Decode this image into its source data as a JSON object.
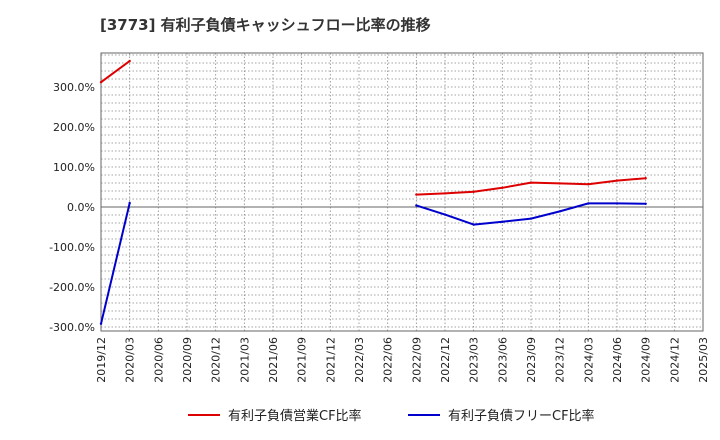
{
  "chart_data": {
    "type": "line",
    "title": "[3773]  有利子負債キャッシュフロー比率の推移",
    "xlabel": "",
    "ylabel": "",
    "ylim": [
      -310,
      385
    ],
    "yticks": [
      300,
      200,
      100,
      0,
      -100,
      -200,
      -300
    ],
    "ytick_labels": [
      "300.0%",
      "200.0%",
      "100.0%",
      "0.0%",
      "-100.0%",
      "-200.0%",
      "-300.0%"
    ],
    "x_labels": [
      "2019/12",
      "2020/03",
      "2020/06",
      "2020/09",
      "2020/12",
      "2021/03",
      "2021/06",
      "2021/09",
      "2021/12",
      "2022/03",
      "2022/06",
      "2022/09",
      "2022/12",
      "2023/03",
      "2023/06",
      "2023/09",
      "2023/12",
      "2024/03",
      "2024/06",
      "2024/09",
      "2024/12",
      "2025/03"
    ],
    "grid": true,
    "legend_position": "bottom",
    "series": [
      {
        "name": "有利子負債営業CF比率",
        "color": "#dd0000",
        "points": [
          {
            "x": "2019/12",
            "y": 312
          },
          {
            "x": "2020/03",
            "y": 365
          },
          {
            "x": "2022/09",
            "y": 31
          },
          {
            "x": "2022/12",
            "y": 34
          },
          {
            "x": "2023/03",
            "y": 38
          },
          {
            "x": "2023/06",
            "y": 48
          },
          {
            "x": "2023/09",
            "y": 61
          },
          {
            "x": "2023/12",
            "y": 59
          },
          {
            "x": "2024/03",
            "y": 57
          },
          {
            "x": "2024/06",
            "y": 66
          },
          {
            "x": "2024/09",
            "y": 72
          }
        ]
      },
      {
        "name": "有利子負債フリーCF比率",
        "color": "#0000cc",
        "points": [
          {
            "x": "2019/12",
            "y": -292
          },
          {
            "x": "2020/03",
            "y": 10
          },
          {
            "x": "2022/09",
            "y": 4
          },
          {
            "x": "2022/12",
            "y": -19
          },
          {
            "x": "2023/03",
            "y": -44
          },
          {
            "x": "2023/06",
            "y": -37
          },
          {
            "x": "2023/09",
            "y": -29
          },
          {
            "x": "2023/12",
            "y": -11
          },
          {
            "x": "2024/03",
            "y": 9
          },
          {
            "x": "2024/06",
            "y": 9
          },
          {
            "x": "2024/09",
            "y": 8
          }
        ]
      }
    ]
  }
}
